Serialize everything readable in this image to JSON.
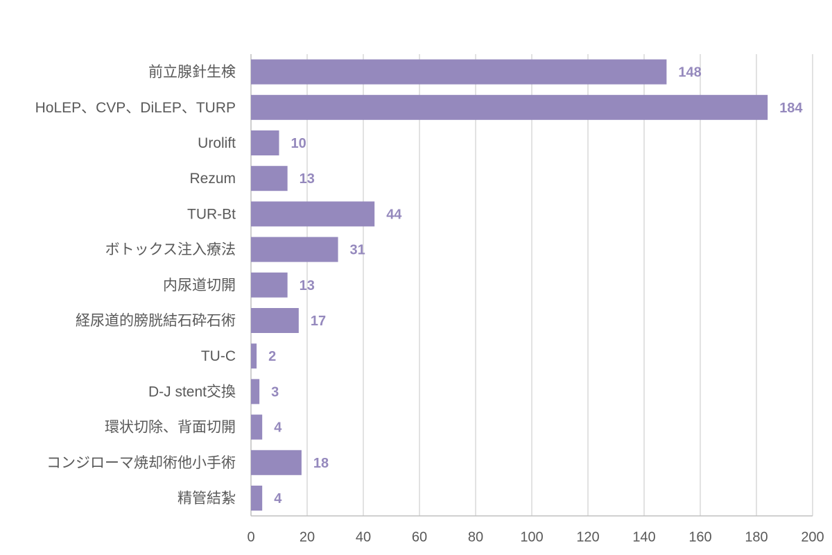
{
  "chart_data": {
    "type": "bar",
    "orientation": "horizontal",
    "categories": [
      "前立腺針生検",
      "HoLEP、CVP、DiLEP、TURP",
      "Urolift",
      "Rezum",
      "TUR-Bt",
      "ボトックス注入療法",
      "内尿道切開",
      "経尿道的膀胱結石砕石術",
      "TU-C",
      "D-J stent交換",
      "環状切除、背面切開",
      "コンジローマ焼却術他小手術",
      "精管結紮"
    ],
    "values": [
      148,
      184,
      10,
      13,
      44,
      31,
      13,
      17,
      2,
      3,
      4,
      18,
      4
    ],
    "xlim": [
      0,
      200
    ],
    "xticks": [
      0,
      20,
      40,
      60,
      80,
      100,
      120,
      140,
      160,
      180,
      200
    ],
    "grid": true,
    "data_labels": true,
    "bar_color": "#9589bd",
    "label_color": "#9589bd",
    "title": "",
    "xlabel": "",
    "ylabel": ""
  }
}
